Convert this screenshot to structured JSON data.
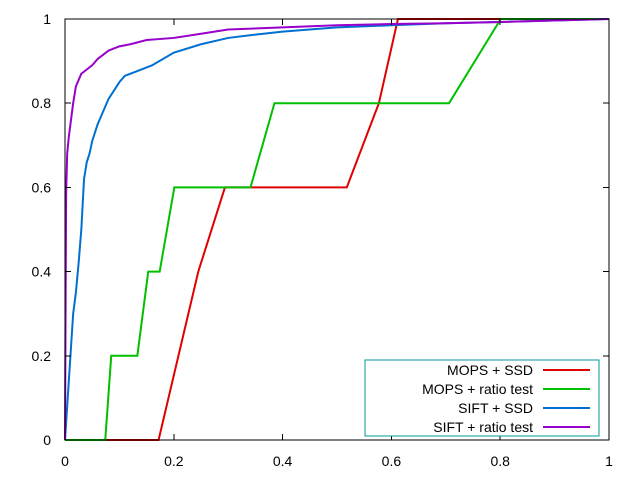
{
  "chart_data": {
    "type": "line",
    "title": "",
    "xlabel": "",
    "ylabel": "",
    "xlim": [
      0,
      1
    ],
    "ylim": [
      0,
      1
    ],
    "x_ticks": [
      "0",
      "0.2",
      "0.4",
      "0.6",
      "0.8",
      "1"
    ],
    "y_ticks": [
      "0",
      "0.2",
      "0.4",
      "0.6",
      "0.8",
      "1"
    ],
    "grid": false,
    "legend_position": "bottom-right",
    "legend_border_color": "#009999",
    "series": [
      {
        "name": "MOPS + SSD",
        "color": "#e00000",
        "x": [
          0,
          0.172,
          0.245,
          0.294,
          0.518,
          0.577,
          0.612,
          0.806,
          1.0
        ],
        "y": [
          0,
          0,
          0.4,
          0.6,
          0.6,
          0.8,
          1.0,
          1.0,
          1.0
        ]
      },
      {
        "name": "MOPS + ratio test",
        "color": "#00c000",
        "x": [
          0,
          0.074,
          0.085,
          0.133,
          0.153,
          0.174,
          0.201,
          0.341,
          0.385,
          0.706,
          0.801,
          1.0
        ],
        "y": [
          0,
          0,
          0.2,
          0.2,
          0.4,
          0.4,
          0.6,
          0.6,
          0.8,
          0.8,
          1.0,
          1.0
        ]
      },
      {
        "name": "SIFT + SSD",
        "color": "#0070d0",
        "x": [
          0,
          0.005,
          0.01,
          0.015,
          0.02,
          0.025,
          0.03,
          0.035,
          0.04,
          0.045,
          0.05,
          0.06,
          0.07,
          0.08,
          0.09,
          0.1,
          0.11,
          0.13,
          0.16,
          0.2,
          0.25,
          0.3,
          0.35,
          0.4,
          0.5,
          0.6,
          0.7,
          0.8,
          1.0
        ],
        "y": [
          0,
          0.1,
          0.2,
          0.3,
          0.35,
          0.42,
          0.5,
          0.62,
          0.66,
          0.68,
          0.71,
          0.75,
          0.78,
          0.81,
          0.83,
          0.85,
          0.865,
          0.875,
          0.89,
          0.92,
          0.94,
          0.955,
          0.963,
          0.97,
          0.98,
          0.985,
          0.99,
          0.993,
          1.0
        ]
      },
      {
        "name": "SIFT + ratio test",
        "color": "#9900cc",
        "x": [
          0,
          0.002,
          0.004,
          0.007,
          0.01,
          0.015,
          0.02,
          0.03,
          0.04,
          0.05,
          0.06,
          0.07,
          0.08,
          0.09,
          0.1,
          0.12,
          0.15,
          0.2,
          0.25,
          0.3,
          0.4,
          0.5,
          0.6,
          0.7,
          0.8,
          1.0
        ],
        "y": [
          0,
          0.58,
          0.68,
          0.72,
          0.75,
          0.8,
          0.84,
          0.87,
          0.88,
          0.89,
          0.905,
          0.915,
          0.925,
          0.93,
          0.935,
          0.94,
          0.95,
          0.955,
          0.965,
          0.975,
          0.98,
          0.985,
          0.988,
          0.99,
          0.993,
          1.0
        ]
      }
    ]
  }
}
